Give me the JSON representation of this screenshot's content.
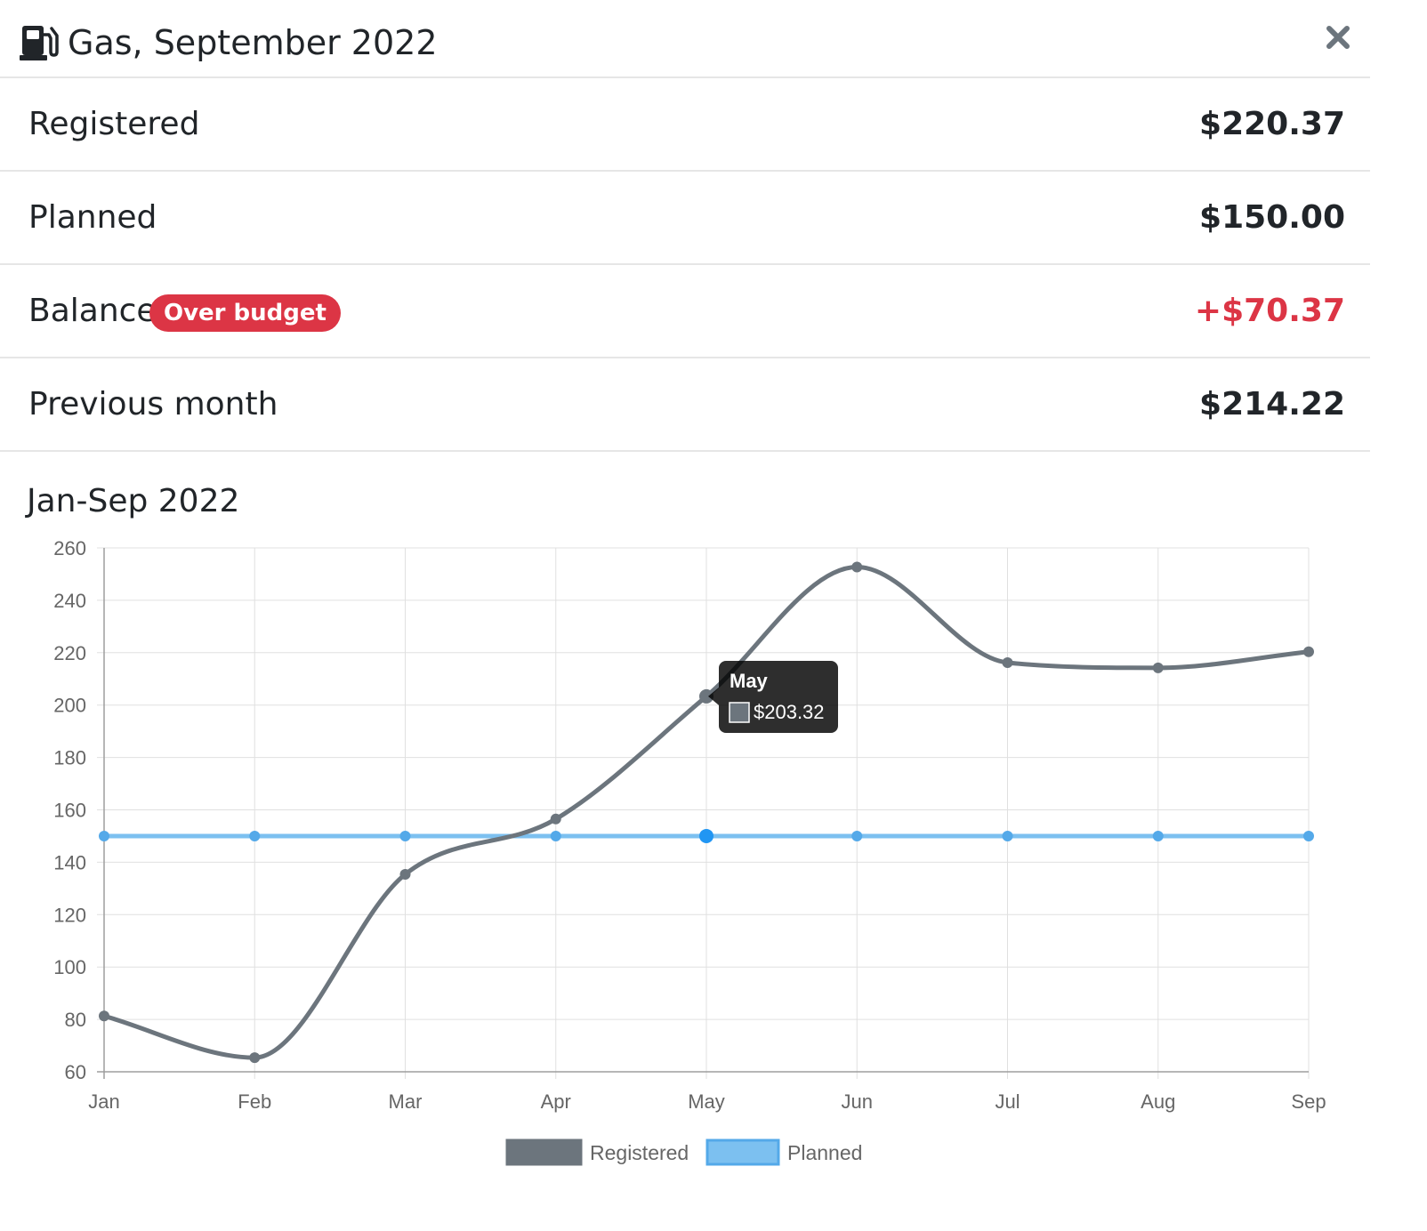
{
  "header": {
    "title": "Gas, September 2022",
    "icon": "gas-pump-icon",
    "close_icon": "close-icon"
  },
  "summary": {
    "registered": {
      "label": "Registered",
      "value": "$220.37"
    },
    "planned": {
      "label": "Planned",
      "value": "$150.00"
    },
    "balance": {
      "label": "Balance",
      "badge": "Over budget",
      "value": "+$70.37"
    },
    "previous": {
      "label": "Previous month",
      "value": "$214.22"
    }
  },
  "colors": {
    "danger": "#dc3545",
    "registered": "#6c757d",
    "planned": "#7cc0f0",
    "planned_point": "#54a9e9",
    "grid": "#e0e0e0"
  },
  "chart_data": {
    "type": "line",
    "title": "Jan-Sep 2022",
    "categories": [
      "Jan",
      "Feb",
      "Mar",
      "Apr",
      "May",
      "Jun",
      "Jul",
      "Aug",
      "Sep"
    ],
    "series": [
      {
        "name": "Registered",
        "values": [
          81.3,
          65.4,
          135.4,
          156.5,
          203.32,
          252.7,
          216.2,
          214.22,
          220.37
        ]
      },
      {
        "name": "Planned",
        "values": [
          150,
          150,
          150,
          150,
          150,
          150,
          150,
          150,
          150
        ]
      }
    ],
    "ylim": [
      60,
      260
    ],
    "yticks": [
      60,
      80,
      100,
      120,
      140,
      160,
      180,
      200,
      220,
      240,
      260
    ],
    "grid": true,
    "legend": "bottom",
    "tooltip": {
      "title": "May",
      "value": "$203.32"
    }
  }
}
